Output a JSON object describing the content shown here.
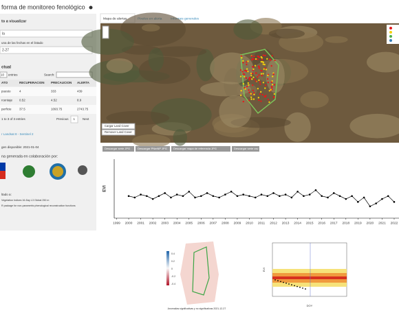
{
  "header": {
    "title": "forma de monitoreo fenológico"
  },
  "sidebar": {
    "select_label": "to a visualizar",
    "select_value": "la",
    "date_label": "una de las fechas en el listado",
    "date_value": "2-27",
    "section": "ctual",
    "entries_count": "10",
    "entries": "entries",
    "search": "Search:",
    "table": {
      "headers": [
        "ATO",
        "RECUPERACION",
        "PRECAUCION",
        "ALERTA"
      ],
      "rows": [
        [
          "puesto",
          "4",
          "333",
          "439"
        ],
        [
          "rcentaje",
          "0.52",
          "4.52",
          "8.9"
        ],
        [
          "perficie",
          "37.5",
          "1093.75",
          "2743.75"
        ]
      ]
    },
    "info": "1 to 3 of 3 entries",
    "pager": [
      "Previous",
      "1",
      "Next"
    ],
    "link": "r Landsat 8 - Sentinel 2",
    "image_date": "gen disponible: 2021-01-04",
    "collab": "na generada en colaboración por:",
    "refs": [
      "ltado a:",
      "Vegetation Indices 16-Day L3 Global 250 m",
      "R package for non-parametric phenological reconstruction functions"
    ]
  },
  "tabs": [
    "Mapa de alertas",
    "Pixeles en alerta",
    "Informes generales"
  ],
  "map": {
    "buttons": [
      "Cargar Land Cover",
      "Remover Land Cover"
    ]
  },
  "downloads": [
    "Descargar serie JPG",
    "Descargar PNmNP JPG",
    "Descargar mapa de referencia JPG",
    "Descargar serie csv"
  ],
  "chart_data": {
    "type": "line",
    "y_label": "EVI",
    "color": "#000000",
    "x": [
      2000,
      2000.5,
      2001,
      2001.5,
      2002,
      2002.5,
      2003,
      2003.5,
      2004,
      2004.5,
      2005,
      2005.5,
      2006,
      2006.5,
      2007,
      2007.5,
      2008,
      2008.5,
      2009,
      2009.5,
      2010,
      2010.5,
      2011,
      2011.5,
      2012,
      2012.5,
      2013,
      2013.5,
      2014,
      2014.5,
      2015,
      2015.5,
      2016,
      2016.5,
      2017,
      2017.5,
      2018,
      2018.5,
      2019,
      2019.5,
      2020,
      2020.5,
      2021,
      2021.5,
      2022
    ],
    "values": [
      0.3,
      0.29,
      0.31,
      0.3,
      0.28,
      0.3,
      0.32,
      0.29,
      0.31,
      0.3,
      0.33,
      0.29,
      0.3,
      0.32,
      0.3,
      0.29,
      0.31,
      0.33,
      0.3,
      0.31,
      0.3,
      0.29,
      0.31,
      0.3,
      0.32,
      0.3,
      0.31,
      0.29,
      0.33,
      0.3,
      0.31,
      0.34,
      0.3,
      0.29,
      0.32,
      0.3,
      0.28,
      0.3,
      0.26,
      0.29,
      0.23,
      0.25,
      0.28,
      0.3,
      0.26
    ],
    "xlim": [
      1998.8,
      2022.4
    ],
    "ylim": [
      0.15,
      0.55
    ],
    "xticks": [
      1999,
      2000,
      2001,
      2002,
      2003,
      2004,
      2005,
      2006,
      2007,
      2008,
      2009,
      2010,
      2011,
      2012,
      2013,
      2014,
      2015,
      2016,
      2017,
      2018,
      2019,
      2020,
      2021,
      2022
    ]
  },
  "bottom": {
    "legend_ticks": [
      "0.4",
      "0.2",
      "0",
      "-0.2",
      "-0.4"
    ],
    "caption": "Anomalías significativas y no significativas 2021-12-27",
    "right_y_label": "EVI",
    "right_x_label": "DOY"
  }
}
